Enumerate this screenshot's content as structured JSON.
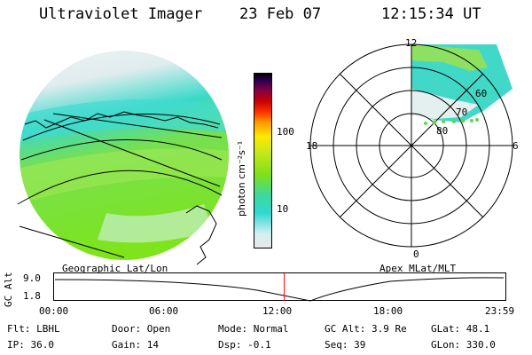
{
  "header": {
    "instrument": "Ultraviolet Imager",
    "date": "23 Feb 07",
    "time": "12:15:34 UT"
  },
  "colorbar": {
    "unit_label": "photon cm⁻²s⁻¹",
    "ticks": [
      "100",
      "10"
    ]
  },
  "polar": {
    "mlt_labels": {
      "top": "12",
      "left": "18",
      "right": "6",
      "bottom": "0"
    },
    "lat_labels": [
      "60",
      "70",
      "80"
    ]
  },
  "panel_labels": {
    "left": "Geographic Lat/Lon",
    "right": "Apex MLat/MLT"
  },
  "orbit_plot": {
    "axis_label": "GC Alt",
    "y_ticks": [
      "9.0",
      "1.8"
    ],
    "x_ticks": [
      "00:00",
      "06:00",
      "12:00",
      "18:00",
      "23:59"
    ],
    "current_time_fraction": 0.51
  },
  "info": {
    "row1": [
      {
        "label": "Flt:",
        "value": "LBHL"
      },
      {
        "label": "Door:",
        "value": "Open"
      },
      {
        "label": "Mode:",
        "value": "Normal"
      },
      {
        "label": "GC Alt:",
        "value": "3.9 Re"
      },
      {
        "label": "GLat:",
        "value": "48.1"
      }
    ],
    "row2": [
      {
        "label": "IP:",
        "value": "36.0"
      },
      {
        "label": "Gain:",
        "value": "14"
      },
      {
        "label": "Dsp:",
        "value": "-0.1"
      },
      {
        "label": "Seq:",
        "value": "39"
      },
      {
        "label": "GLon:",
        "value": "330.0"
      }
    ]
  },
  "colors": {
    "accent_marker": "#ff0000",
    "aurora_green": "#7fe01a",
    "aurora_cyan": "#30d8d0",
    "aurora_pale": "#d8eef0"
  }
}
